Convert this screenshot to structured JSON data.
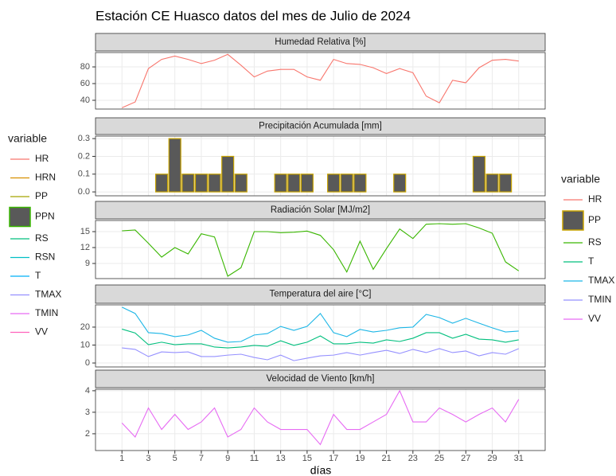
{
  "title": "Estación CE Huasco datos del mes de Julio de 2024",
  "x_label": "días",
  "legends": [
    {
      "title": "variable",
      "items": [
        {
          "name": "HR",
          "color": "#F8766D",
          "key": "line"
        },
        {
          "name": "HRN",
          "color": "#D89000",
          "key": "line"
        },
        {
          "name": "PP",
          "color": "#A3A500",
          "key": "line"
        },
        {
          "name": "PPN",
          "color": "#39B600",
          "key": "box"
        },
        {
          "name": "RS",
          "color": "#00BF7D",
          "key": "line"
        },
        {
          "name": "RSN",
          "color": "#00BFC4",
          "key": "line"
        },
        {
          "name": "T",
          "color": "#00B0F6",
          "key": "line"
        },
        {
          "name": "TMAX",
          "color": "#9590FF",
          "key": "line"
        },
        {
          "name": "TMIN",
          "color": "#E76BF3",
          "key": "line"
        },
        {
          "name": "VV",
          "color": "#FF62BC",
          "key": "line"
        }
      ]
    },
    {
      "title": "variable",
      "items": [
        {
          "name": "HR",
          "color": "#F8766D",
          "key": "line"
        },
        {
          "name": "PP",
          "color": "#C9A400",
          "key": "box"
        },
        {
          "name": "RS",
          "color": "#39B600",
          "key": "line"
        },
        {
          "name": "T",
          "color": "#00BF7D",
          "key": "line"
        },
        {
          "name": "TMAX",
          "color": "#1CB6E6",
          "key": "line"
        },
        {
          "name": "TMIN",
          "color": "#9590FF",
          "key": "line"
        },
        {
          "name": "VV",
          "color": "#E76BF3",
          "key": "line"
        }
      ]
    }
  ],
  "chart_data": [
    {
      "type": "line",
      "title": "Humedad Relativa [%]",
      "x": [
        1,
        2,
        3,
        4,
        5,
        6,
        7,
        8,
        9,
        10,
        11,
        12,
        13,
        14,
        15,
        16,
        17,
        18,
        19,
        20,
        21,
        22,
        23,
        24,
        25,
        26,
        27,
        28,
        29,
        30,
        31
      ],
      "series": [
        {
          "name": "HR",
          "color": "#F8766D",
          "values": [
            31,
            38,
            78,
            89,
            93,
            89,
            84,
            88,
            95,
            82,
            68,
            75,
            77,
            77,
            68,
            64,
            89,
            84,
            83,
            79,
            72,
            78,
            73,
            45,
            37,
            64,
            61,
            79,
            88,
            89,
            87
          ]
        }
      ],
      "xlim": [
        -1,
        33
      ],
      "xticks": [
        1,
        3,
        5,
        7,
        9,
        11,
        13,
        15,
        17,
        19,
        21,
        23,
        25,
        27,
        29,
        31
      ],
      "ylim": [
        29.5,
        97.2
      ],
      "yticks": [
        40,
        60,
        80
      ]
    },
    {
      "type": "bar",
      "title": "Precipitación Acumulada [mm]",
      "x": [
        1,
        2,
        3,
        4,
        5,
        6,
        7,
        8,
        9,
        10,
        11,
        12,
        13,
        14,
        15,
        16,
        17,
        18,
        19,
        20,
        21,
        22,
        23,
        24,
        25,
        26,
        27,
        28,
        29,
        30,
        31
      ],
      "series": [
        {
          "name": "PP",
          "color": "#C9A400",
          "fill": "#595959",
          "values": [
            0,
            0,
            0,
            0.1,
            0.3,
            0.1,
            0.1,
            0.1,
            0.2,
            0.1,
            0,
            0,
            0.1,
            0.1,
            0.1,
            0,
            0.1,
            0.1,
            0.1,
            0,
            0,
            0.1,
            0,
            0,
            0,
            0,
            0,
            0.2,
            0.1,
            0.1,
            0
          ]
        }
      ],
      "xlim": [
        -1,
        33
      ],
      "xticks": [
        1,
        3,
        5,
        7,
        9,
        11,
        13,
        15,
        17,
        19,
        21,
        23,
        25,
        27,
        29,
        31
      ],
      "ylim": [
        -0.022,
        0.314
      ],
      "yticks": [
        {
          "value": 0,
          "label": "0.0"
        },
        0.1,
        0.2,
        0.3
      ]
    },
    {
      "type": "line",
      "title": "Radiación Solar [MJ/m2]",
      "x": [
        1,
        2,
        3,
        4,
        5,
        6,
        7,
        8,
        9,
        10,
        11,
        12,
        13,
        14,
        15,
        16,
        17,
        18,
        19,
        20,
        21,
        22,
        23,
        24,
        25,
        26,
        27,
        28,
        29,
        30,
        31
      ],
      "series": [
        {
          "name": "RS",
          "color": "#39B600",
          "values": [
            15.15,
            15.3,
            12.8,
            10.2,
            12,
            10.8,
            14.6,
            14,
            6.6,
            8.2,
            15,
            15,
            14.8,
            14.9,
            15.1,
            14.3,
            11.6,
            7.4,
            13.2,
            7.9,
            11.8,
            15.5,
            13.7,
            16.4,
            16.5,
            16.4,
            16.5,
            15.7,
            14.7,
            9.3,
            7.6
          ]
        }
      ],
      "xlim": [
        -1,
        33
      ],
      "xticks": [
        1,
        3,
        5,
        7,
        9,
        11,
        13,
        15,
        17,
        19,
        21,
        23,
        25,
        27,
        29,
        31
      ],
      "ylim": [
        6.15,
        17.1
      ],
      "yticks": [
        9,
        12,
        15
      ]
    },
    {
      "type": "line",
      "title": "Temperatura del aire [°C]",
      "x": [
        1,
        2,
        3,
        4,
        5,
        6,
        7,
        8,
        9,
        10,
        11,
        12,
        13,
        14,
        15,
        16,
        17,
        18,
        19,
        20,
        21,
        22,
        23,
        24,
        25,
        26,
        27,
        28,
        29,
        30,
        31
      ],
      "series": [
        {
          "name": "T",
          "color": "#00BF7D",
          "values": [
            18.9,
            16.7,
            10.2,
            11.6,
            10.2,
            10.7,
            10.7,
            8.9,
            8.4,
            8.9,
            9.8,
            9.3,
            12.4,
            9.8,
            11.6,
            15.1,
            10.7,
            10.7,
            11.6,
            11.1,
            12.9,
            12,
            13.8,
            16.9,
            16.9,
            13.8,
            16,
            13.3,
            12.9,
            11.6,
            12.9
          ]
        },
        {
          "name": "TMAX",
          "color": "#1CB6E6",
          "values": [
            31.1,
            27.6,
            16.9,
            16.4,
            14.7,
            15.6,
            18.2,
            13.8,
            11.6,
            12,
            15.6,
            16.4,
            20.4,
            18.2,
            20.4,
            27.6,
            16.9,
            14.7,
            18.7,
            17.3,
            18.2,
            19.6,
            20,
            27.1,
            25.3,
            22.2,
            24.9,
            22.2,
            19.6,
            17.3,
            17.8
          ]
        },
        {
          "name": "TMIN",
          "color": "#9590FF",
          "values": [
            8.4,
            7.6,
            3.6,
            6.2,
            5.8,
            6.2,
            3.6,
            3.6,
            4.4,
            4.9,
            3.1,
            1.8,
            4.4,
            1.3,
            2.7,
            4,
            4.4,
            5.8,
            4.4,
            5.8,
            7.1,
            5.3,
            7.6,
            5.8,
            8,
            5.8,
            6.7,
            4,
            5.8,
            4.9,
            8
          ]
        }
      ],
      "xlim": [
        -1,
        33
      ],
      "xticks": [
        1,
        3,
        5,
        7,
        9,
        11,
        13,
        15,
        17,
        19,
        21,
        23,
        25,
        27,
        29,
        31
      ],
      "ylim": [
        -2.2,
        32.4
      ],
      "yticks": [
        0,
        10,
        20
      ]
    },
    {
      "type": "line",
      "title": "Velocidad de Viento [km/h]",
      "x": [
        1,
        2,
        3,
        4,
        5,
        6,
        7,
        8,
        9,
        10,
        11,
        12,
        13,
        14,
        15,
        16,
        17,
        18,
        19,
        20,
        21,
        22,
        23,
        24,
        25,
        26,
        27,
        28,
        29,
        30,
        31
      ],
      "series": [
        {
          "name": "VV",
          "color": "#E76BF3",
          "values": [
            2.5,
            1.85,
            3.2,
            2.2,
            2.9,
            2.2,
            2.55,
            3.2,
            1.85,
            2.2,
            3.2,
            2.55,
            2.2,
            2.2,
            2.2,
            1.5,
            2.9,
            2.2,
            2.2,
            2.55,
            2.9,
            4,
            2.55,
            2.55,
            3.2,
            2.9,
            2.55,
            2.9,
            3.2,
            2.55,
            3.6
          ]
        }
      ],
      "xlim": [
        -1,
        33
      ],
      "xticks": [
        1,
        3,
        5,
        7,
        9,
        11,
        13,
        15,
        17,
        19,
        21,
        23,
        25,
        27,
        29,
        31
      ],
      "ylim": [
        1.22,
        4.07
      ],
      "yticks": [
        2,
        3,
        4
      ]
    }
  ]
}
